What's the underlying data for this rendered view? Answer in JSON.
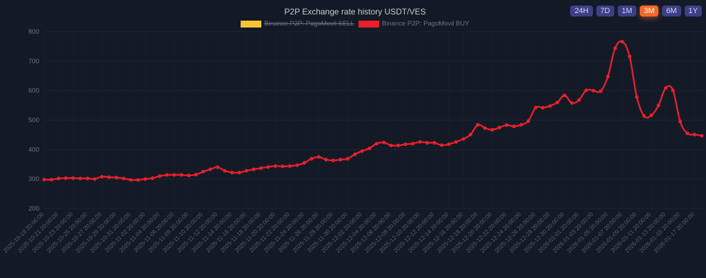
{
  "header": {
    "title": "P2P Exchange rate history USDT/VES"
  },
  "ranges": [
    {
      "label": "24H",
      "active": false
    },
    {
      "label": "7D",
      "active": false
    },
    {
      "label": "1M",
      "active": false
    },
    {
      "label": "3M",
      "active": true
    },
    {
      "label": "6M",
      "active": false
    },
    {
      "label": "1Y",
      "active": false
    }
  ],
  "colors": {
    "background": "#131a26",
    "sell": "#f9c433",
    "buy": "#e8202c",
    "active_range": "#f26a2b",
    "range_button": "#3c3f86"
  },
  "chart_data": {
    "type": "line",
    "title": "P2P Exchange rate history USDT/VES",
    "ylim": [
      200,
      800
    ],
    "yticks": [
      200,
      300,
      400,
      500,
      600,
      700,
      800
    ],
    "grid": true,
    "legend_placement": "top",
    "legend": [
      {
        "name": "Binance P2P: PagoMovil SELL",
        "color": "#f9c433",
        "hidden": true
      },
      {
        "name": "Binance P2P: PagoMovil BUY",
        "color": "#e8202c",
        "hidden": false
      }
    ],
    "categories": [
      "2025-10-19 20:00:00",
      "2025-10-20 20:00:00",
      "2025-10-21 20:00:00",
      "2025-10-22 20:00:00",
      "2025-10-23 20:00:00",
      "2025-10-24 20:00:00",
      "2025-10-25 20:00:00",
      "2025-10-26 20:00:00",
      "2025-10-27 20:00:00",
      "2025-10-28 20:00:00",
      "2025-10-29 20:00:00",
      "2025-10-30 20:00:00",
      "2025-10-31 20:00:00",
      "2025-11-01 20:00:00",
      "2025-11-02 20:00:00",
      "2025-11-03 20:00:00",
      "2025-11-04 20:00:00",
      "2025-11-05 20:00:00",
      "2025-11-06 20:00:00",
      "2025-11-07 20:00:00",
      "2025-11-08 20:00:00",
      "2025-11-09 20:00:00",
      "2025-11-10 20:00:00",
      "2025-11-11 20:00:00",
      "2025-11-12 20:00:00",
      "2025-11-13 20:00:00",
      "2025-11-14 20:00:00",
      "2025-11-15 20:00:00",
      "2025-11-16 20:00:00",
      "2025-11-17 20:00:00",
      "2025-11-18 20:00:00",
      "2025-11-19 20:00:00",
      "2025-11-20 20:00:00",
      "2025-11-21 20:00:00",
      "2025-11-22 20:00:00",
      "2025-11-23 20:00:00",
      "2025-11-24 20:00:00",
      "2025-11-25 20:00:00",
      "2025-11-26 20:00:00",
      "2025-11-27 20:00:00",
      "2025-11-28 20:00:00",
      "2025-11-29 20:00:00",
      "2025-11-30 20:00:00",
      "2025-12-01 20:00:00",
      "2025-12-02 20:00:00",
      "2025-12-03 20:00:00",
      "2025-12-04 20:00:00",
      "2025-12-05 20:00:00",
      "2025-12-06 20:00:00",
      "2025-12-07 20:00:00",
      "2025-12-08 20:00:00",
      "2025-12-09 20:00:00",
      "2025-12-10 20:00:00",
      "2025-12-11 20:00:00",
      "2025-12-12 20:00:00",
      "2025-12-13 20:00:00",
      "2025-12-14 20:00:00",
      "2025-12-15 20:00:00",
      "2025-12-16 20:00:00",
      "2025-12-17 20:00:00",
      "2025-12-18 20:00:00",
      "2025-12-19 20:00:00",
      "2025-12-20 20:00:00",
      "2025-12-21 20:00:00",
      "2025-12-22 20:00:00",
      "2025-12-23 20:00:00",
      "2025-12-24 20:00:00",
      "2025-12-25 20:00:00",
      "2025-12-26 20:00:00",
      "2025-12-27 20:00:00",
      "2025-12-28 20:00:00",
      "2025-12-29 20:00:00",
      "2025-12-30 20:00:00",
      "2025-12-31 20:00:00",
      "2026-01-01 20:00:00",
      "2026-01-02 20:00:00",
      "2026-01-03 20:00:00",
      "2026-01-04 20:00:00",
      "2026-01-05 20:00:00",
      "2026-01-06 20:00:00",
      "2026-01-07 20:00:00",
      "2026-01-08 20:00:00",
      "2026-01-09 20:00:00",
      "2026-01-10 20:00:00",
      "2026-01-11 20:00:00",
      "2026-01-12 20:00:00",
      "2026-01-13 20:00:00",
      "2026-01-14 20:00:00",
      "2026-01-15 20:00:00",
      "2026-01-16 20:00:00",
      "2026-01-17 20:00:00",
      "2026-01-18 20:00:00"
    ],
    "tick_label_every": 2,
    "series": [
      {
        "name": "Binance P2P: PagoMovil BUY",
        "color": "#e8202c",
        "values": [
          298,
          298,
          302,
          303,
          303,
          302,
          302,
          300,
          308,
          306,
          305,
          302,
          297,
          297,
          300,
          303,
          310,
          314,
          314,
          314,
          312,
          315,
          325,
          333,
          340,
          328,
          322,
          322,
          328,
          333,
          337,
          341,
          344,
          343,
          344,
          347,
          355,
          369,
          375,
          366,
          363,
          366,
          369,
          384,
          395,
          404,
          420,
          424,
          414,
          414,
          418,
          420,
          426,
          423,
          423,
          415,
          418,
          426,
          436,
          451,
          484,
          473,
          467,
          475,
          483,
          479,
          484,
          497,
          542,
          542,
          548,
          560,
          584,
          558,
          568,
          601,
          600,
          598,
          648,
          744,
          766,
          716,
          578,
          514,
          516,
          550,
          609,
          601,
          495,
          455,
          451,
          447
        ]
      }
    ]
  }
}
